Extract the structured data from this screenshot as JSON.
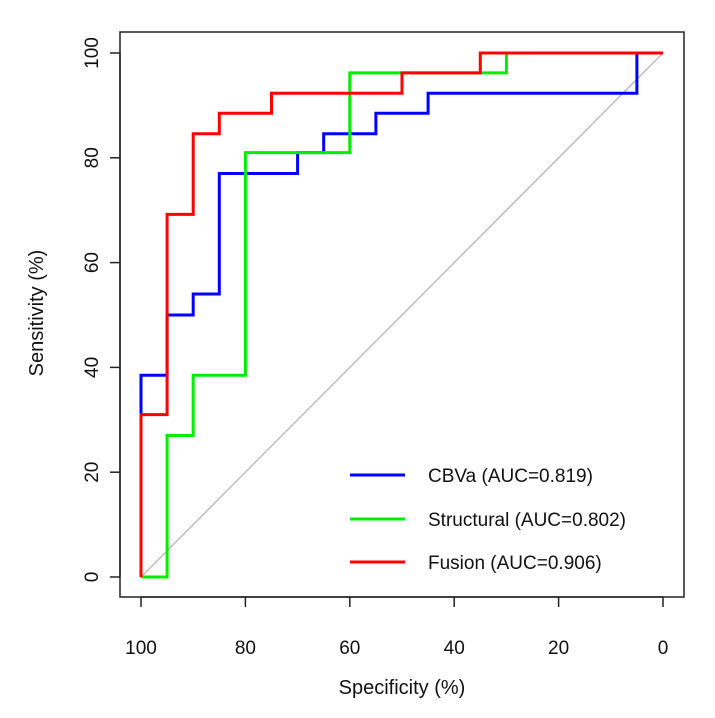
{
  "chart_data": {
    "type": "line",
    "title": "",
    "xlabel": "Specificity (%)",
    "ylabel": "Sensitivity (%)",
    "xlim": [
      100,
      0
    ],
    "ylim": [
      0,
      100
    ],
    "x_ticks": [
      100,
      80,
      60,
      40,
      20,
      0
    ],
    "y_ticks": [
      0,
      20,
      40,
      60,
      80,
      100
    ],
    "grid": false,
    "legend_position": "bottom-right",
    "reference_line": {
      "from": [
        100,
        0
      ],
      "to": [
        0,
        100
      ],
      "color": "#b0b0b0"
    },
    "series": [
      {
        "name": "CBVa",
        "legend_label": "CBVa (AUC=0.819)",
        "color": "#0000ff",
        "points": [
          [
            100,
            0
          ],
          [
            100,
            31
          ],
          [
            100,
            38.5
          ],
          [
            95,
            38.5
          ],
          [
            95,
            50
          ],
          [
            90,
            50
          ],
          [
            90,
            54
          ],
          [
            85,
            54
          ],
          [
            85,
            77
          ],
          [
            70,
            77
          ],
          [
            70,
            81
          ],
          [
            65,
            81
          ],
          [
            65,
            84.6
          ],
          [
            55,
            84.6
          ],
          [
            55,
            88.5
          ],
          [
            45,
            88.5
          ],
          [
            45,
            92.3
          ],
          [
            5,
            92.3
          ],
          [
            5,
            100
          ],
          [
            0,
            100
          ]
        ]
      },
      {
        "name": "Structural",
        "legend_label": "Structural (AUC=0.802)",
        "color": "#00ee00",
        "points": [
          [
            100,
            0
          ],
          [
            95,
            0
          ],
          [
            95,
            27
          ],
          [
            90,
            27
          ],
          [
            90,
            38.5
          ],
          [
            80,
            38.5
          ],
          [
            80,
            81
          ],
          [
            60,
            81
          ],
          [
            60,
            96.2
          ],
          [
            30,
            96.2
          ],
          [
            30,
            100
          ],
          [
            0,
            100
          ]
        ]
      },
      {
        "name": "Fusion",
        "legend_label": "Fusion (AUC=0.906)",
        "color": "#ff0000",
        "points": [
          [
            100,
            0
          ],
          [
            100,
            31
          ],
          [
            95,
            31
          ],
          [
            95,
            69.2
          ],
          [
            90,
            69.2
          ],
          [
            90,
            84.6
          ],
          [
            85,
            84.6
          ],
          [
            85,
            88.5
          ],
          [
            75,
            88.5
          ],
          [
            75,
            92.3
          ],
          [
            50,
            92.3
          ],
          [
            50,
            96.2
          ],
          [
            35,
            96.2
          ],
          [
            35,
            100
          ],
          [
            0,
            100
          ]
        ]
      }
    ]
  }
}
